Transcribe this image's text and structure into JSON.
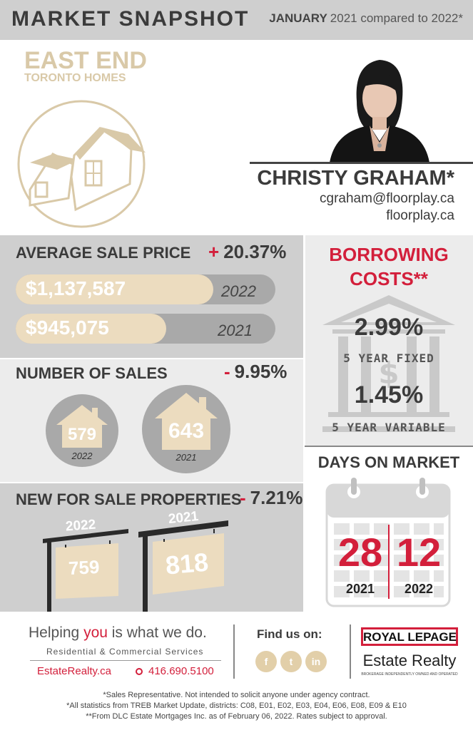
{
  "header": {
    "title": "MARKET SNAPSHOT",
    "month": "JANUARY",
    "comparison": "2021 compared to 2022*"
  },
  "area": {
    "name": "EAST END",
    "subtitle": "TORONTO HOMES"
  },
  "agent": {
    "name": "CHRISTY GRAHAM*",
    "email": "cgraham@floorplay.ca",
    "website": "floorplay.ca"
  },
  "average_sale_price": {
    "title": "AVERAGE SALE PRICE",
    "change_sign": "+",
    "change": "20.37%",
    "rows": [
      {
        "value": "$1,137,587",
        "year": "2022",
        "fraction": 0.76
      },
      {
        "value": "$945,075",
        "year": "2021",
        "fraction": 0.58
      }
    ]
  },
  "number_of_sales": {
    "title": "NUMBER OF SALES",
    "change_sign": "-",
    "change": "9.95%",
    "items": [
      {
        "value": "579",
        "year": "2022"
      },
      {
        "value": "643",
        "year": "2021"
      }
    ]
  },
  "new_for_sale": {
    "title": "NEW FOR SALE PROPERTIES",
    "change_sign": "-",
    "change": "7.21%",
    "items": [
      {
        "value": "759",
        "year": "2022"
      },
      {
        "value": "818",
        "year": "2021"
      }
    ]
  },
  "borrowing": {
    "title_line1": "BORROWING",
    "title_line2": "COSTS**",
    "rates": [
      {
        "value": "2.99%",
        "label": "5 YEAR FIXED"
      },
      {
        "value": "1.45%",
        "label": "5 YEAR VARIABLE"
      }
    ]
  },
  "days_on_market": {
    "title": "DAYS ON MARKET",
    "items": [
      {
        "value": "28",
        "year": "2021"
      },
      {
        "value": "12",
        "year": "2022"
      }
    ]
  },
  "footer": {
    "tagline_pre": "Helping ",
    "tagline_you": "you",
    "tagline_post": " is what we do.",
    "subtagline": "Residential & Commercial Services",
    "website": "EstateRealty.ca",
    "phone": "416.690.5100",
    "find_us": "Find us on:",
    "social": [
      {
        "icon": "facebook-icon",
        "glyph": "f"
      },
      {
        "icon": "twitter-icon",
        "glyph": "t"
      },
      {
        "icon": "linkedin-icon",
        "glyph": "in"
      }
    ],
    "brand_line1": "ROYAL LEPAGE",
    "brand_line2": "Estate Realty",
    "brand_tagline": "BROKERAGE INDEPENDENTLY OWNED AND OPERATED",
    "notes": [
      "*Sales Representative. Not intended to solicit anyone under agency contract.",
      "*All statistics from TREB Market Update, districts: C08, E01, E02, E03, E04, E06, E08, E09 & E10",
      "**From DLC Estate Mortgages Inc. as of February 06, 2022. Rates subject to approval."
    ]
  },
  "colors": {
    "accent_red": "#d31f3b",
    "beige": "#ecdcbf",
    "gray_panel": "#cfcfcf",
    "light_panel": "#ececec"
  }
}
